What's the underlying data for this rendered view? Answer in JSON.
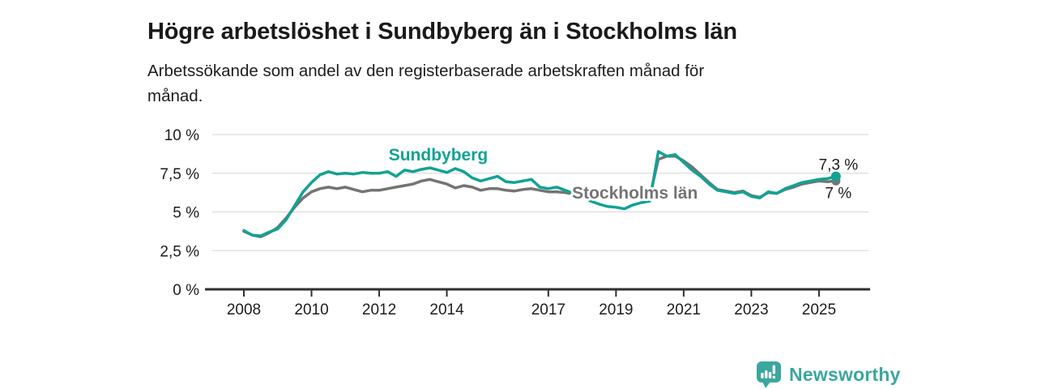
{
  "header": {
    "title": "Högre arbetslöshet i Sundbyberg än i Stockholms län",
    "subtitle": "Arbetssökande som andel av den registerbaserade arbetskraften månad för månad.",
    "subtitle_lines": [
      "Arbetssökande som andel av den registerbaserade arbetskraften månad för",
      "månad."
    ]
  },
  "footer": {
    "brand": "Newsworthy",
    "logo_icon": "bar-chart-speech-bubble-icon",
    "brand_color": "#3ba79e"
  },
  "colors": {
    "sundbyberg_line": "#12a294",
    "stockholm_line": "#747474",
    "grid": "#dcdcdc",
    "axis": "#2f2f2f",
    "text": "#1d1d1d",
    "label_halo": "#ffffff"
  },
  "chart_data": {
    "type": "line",
    "title": "Högre arbetslöshet i Sundbyberg än i Stockholms län",
    "xlabel": "",
    "ylabel": "",
    "ylim": [
      0,
      10.4
    ],
    "xlim": [
      2007.85,
      2026.4
    ],
    "grid": "horizontal",
    "legend_position": "inline-labels",
    "x_unit": "year (monthly series)",
    "y_unit": "percent",
    "x": [
      2008,
      2008.25,
      2008.5,
      2008.75,
      2009,
      2009.25,
      2009.5,
      2009.75,
      2010,
      2010.25,
      2010.5,
      2010.75,
      2011,
      2011.25,
      2011.5,
      2011.75,
      2012,
      2012.25,
      2012.5,
      2012.75,
      2013,
      2013.25,
      2013.5,
      2013.75,
      2014,
      2014.25,
      2014.5,
      2014.75,
      2015,
      2015.25,
      2015.5,
      2015.75,
      2016,
      2016.25,
      2016.5,
      2016.75,
      2017,
      2017.25,
      2017.5,
      2017.75,
      2018,
      2018.25,
      2018.5,
      2018.75,
      2019,
      2019.25,
      2019.5,
      2019.75,
      2020,
      2020.25,
      2020.5,
      2020.75,
      2021,
      2021.25,
      2021.5,
      2021.75,
      2022,
      2022.25,
      2022.5,
      2022.75,
      2023,
      2023.25,
      2023.5,
      2023.75,
      2024,
      2024.25,
      2024.5,
      2024.75,
      2025,
      2025.25,
      2025.5
    ],
    "series": [
      {
        "name": "Stockholms län",
        "color": "#747474",
        "line_width": 3.5,
        "end_value": 7.0,
        "end_label": "7 %",
        "end_label_offset": {
          "dx": 3,
          "dy": 21
        },
        "end_dot_radius": 5.5,
        "label_anchor": {
          "x": 2017.7,
          "y": 5.86,
          "anchor": "start"
        },
        "values": [
          3.75,
          3.5,
          3.4,
          3.65,
          4.0,
          4.6,
          5.3,
          5.9,
          6.3,
          6.5,
          6.6,
          6.5,
          6.6,
          6.45,
          6.3,
          6.4,
          6.4,
          6.5,
          6.6,
          6.7,
          6.8,
          7.0,
          7.1,
          6.95,
          6.8,
          6.55,
          6.7,
          6.6,
          6.4,
          6.5,
          6.5,
          6.4,
          6.35,
          6.45,
          6.5,
          6.4,
          6.3,
          6.3,
          6.25,
          6.15,
          6.1,
          6.0,
          5.95,
          5.9,
          5.9,
          5.85,
          5.9,
          5.95,
          6.0,
          8.4,
          8.6,
          8.6,
          8.3,
          7.9,
          7.4,
          6.9,
          6.45,
          6.35,
          6.25,
          6.35,
          6.05,
          5.95,
          6.25,
          6.2,
          6.45,
          6.6,
          6.8,
          6.9,
          7.0,
          6.95,
          7.0
        ]
      },
      {
        "name": "Sundbyberg",
        "color": "#12a294",
        "line_width": 3.5,
        "end_value": 7.3,
        "end_label": "7,3 %",
        "end_label_offset": {
          "dx": 3,
          "dy": -8
        },
        "end_dot_radius": 6,
        "label_anchor": {
          "x": 2012.28,
          "y": 8.32,
          "anchor": "start"
        },
        "values": [
          3.8,
          3.5,
          3.45,
          3.7,
          3.9,
          4.5,
          5.4,
          6.3,
          6.9,
          7.4,
          7.6,
          7.45,
          7.5,
          7.45,
          7.55,
          7.5,
          7.5,
          7.6,
          7.3,
          7.7,
          7.6,
          7.75,
          7.85,
          7.7,
          7.55,
          7.8,
          7.6,
          7.2,
          7.0,
          7.15,
          7.3,
          6.95,
          6.9,
          7.0,
          7.1,
          6.6,
          6.5,
          6.6,
          6.4,
          6.2,
          6.0,
          5.7,
          5.5,
          5.35,
          5.3,
          5.2,
          5.45,
          5.6,
          5.7,
          8.9,
          8.6,
          8.7,
          8.2,
          7.7,
          7.3,
          6.8,
          6.4,
          6.3,
          6.2,
          6.3,
          6.0,
          5.9,
          6.3,
          6.2,
          6.5,
          6.7,
          6.9,
          7.0,
          7.1,
          7.15,
          7.3
        ]
      }
    ],
    "y_ticks": [
      {
        "value": 0,
        "label": "0 %"
      },
      {
        "value": 2.5,
        "label": "2,5 %"
      },
      {
        "value": 5,
        "label": "5 %"
      },
      {
        "value": 7.5,
        "label": "7,5 %"
      },
      {
        "value": 10,
        "label": "10 %"
      }
    ],
    "x_ticks": [
      {
        "value": 2008,
        "label": "2008"
      },
      {
        "value": 2010,
        "label": "2010"
      },
      {
        "value": 2012,
        "label": "2012"
      },
      {
        "value": 2014,
        "label": "2014"
      },
      {
        "value": 2017,
        "label": "2017"
      },
      {
        "value": 2019,
        "label": "2019"
      },
      {
        "value": 2021,
        "label": "2021"
      },
      {
        "value": 2023,
        "label": "2023"
      },
      {
        "value": 2025,
        "label": "2025"
      }
    ]
  }
}
